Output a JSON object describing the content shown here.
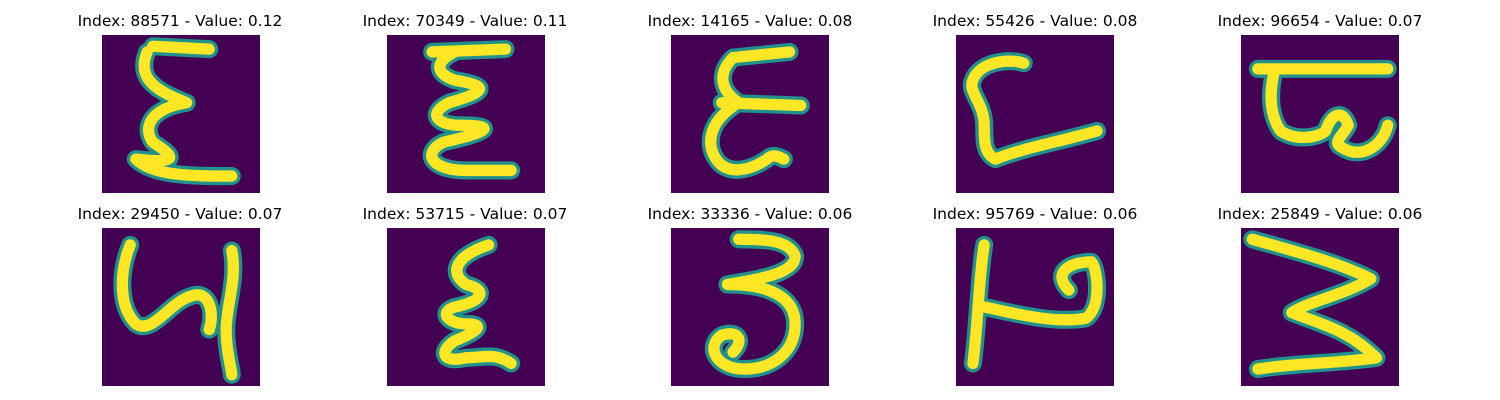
{
  "colors": {
    "background": "#440154",
    "stroke_mid": "#21918c",
    "stroke_high": "#fde725"
  },
  "images": [
    {
      "title": "Index: 88571 - Value: 0.12",
      "index": 88571,
      "value": 0.12,
      "glyph": "ksi-like-a"
    },
    {
      "title": "Index: 70349 - Value: 0.11",
      "index": 70349,
      "value": 0.11,
      "glyph": "ksi-like-b"
    },
    {
      "title": "Index: 14165 - Value: 0.08",
      "index": 14165,
      "value": 0.08,
      "glyph": "ksi-like-c"
    },
    {
      "title": "Index: 55426 - Value: 0.08",
      "index": 55426,
      "value": 0.08,
      "glyph": "l-like"
    },
    {
      "title": "Index: 96654 - Value: 0.07",
      "index": 96654,
      "value": 0.07,
      "glyph": "tee-loop"
    },
    {
      "title": "Index: 29450 - Value: 0.07",
      "index": 29450,
      "value": 0.07,
      "glyph": "y-like"
    },
    {
      "title": "Index: 53715 - Value: 0.07",
      "index": 53715,
      "value": 0.07,
      "glyph": "ksi-like-d"
    },
    {
      "title": "Index: 33336 - Value: 0.06",
      "index": 33336,
      "value": 0.06,
      "glyph": "three"
    },
    {
      "title": "Index: 95769 - Value: 0.06",
      "index": 95769,
      "value": 0.06,
      "glyph": "h-loop"
    },
    {
      "title": "Index: 25849 - Value: 0.06",
      "index": 25849,
      "value": 0.06,
      "glyph": "sigma-like"
    }
  ]
}
